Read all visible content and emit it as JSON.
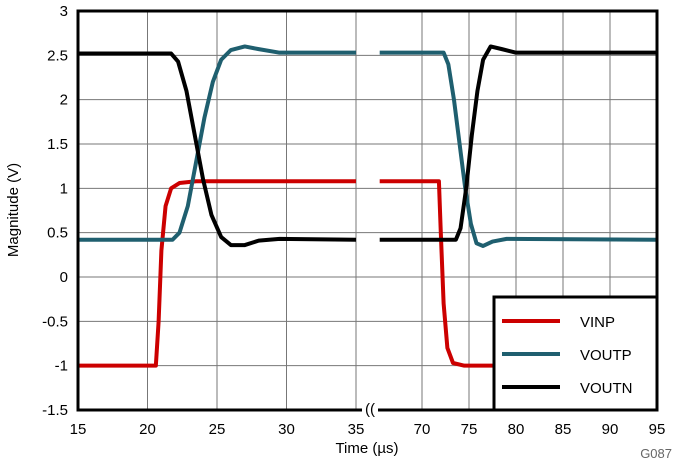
{
  "chart_data": {
    "type": "line",
    "title": "",
    "xlabel": "Time (µs)",
    "ylabel": "Magnitude (V)",
    "figure_id": "G087",
    "xlim_segments": [
      [
        15,
        35
      ],
      [
        65.5,
        95
      ]
    ],
    "ylim": [
      -1.5,
      3
    ],
    "grid": true,
    "legend_placement": "bottom-right",
    "x_ticks": [
      15,
      20,
      25,
      30,
      35,
      70,
      75,
      80,
      85,
      90,
      95
    ],
    "y_ticks": [
      3,
      2.5,
      2,
      1.5,
      1,
      0.5,
      0,
      -0.5,
      -1,
      -1.5
    ],
    "y_tick_labels": [
      "3",
      "2.5",
      "2",
      "1.5",
      "1",
      "0.5",
      "0",
      "-0.5",
      "-1",
      "-1.5"
    ],
    "series": [
      {
        "name": "VINP",
        "color": "#cc0000",
        "segments": [
          [
            [
              15,
              -1
            ],
            [
              20.6,
              -1
            ],
            [
              20.8,
              -0.5
            ],
            [
              21,
              0.3
            ],
            [
              21.3,
              0.8
            ],
            [
              21.7,
              1.0
            ],
            [
              22.3,
              1.06
            ],
            [
              23.5,
              1.08
            ],
            [
              35,
              1.08
            ]
          ],
          [
            [
              65.5,
              1.08
            ],
            [
              71.8,
              1.08
            ],
            [
              72,
              0.5
            ],
            [
              72.3,
              -0.3
            ],
            [
              72.7,
              -0.8
            ],
            [
              73.3,
              -0.97
            ],
            [
              74.5,
              -1
            ],
            [
              95,
              -1
            ]
          ]
        ]
      },
      {
        "name": "VOUTP",
        "color": "#1f5f6f",
        "segments": [
          [
            [
              15,
              0.42
            ],
            [
              21.8,
              0.42
            ],
            [
              22.3,
              0.5
            ],
            [
              22.9,
              0.8
            ],
            [
              23.5,
              1.3
            ],
            [
              24.1,
              1.8
            ],
            [
              24.7,
              2.2
            ],
            [
              25.3,
              2.45
            ],
            [
              26,
              2.56
            ],
            [
              27,
              2.6
            ],
            [
              28,
              2.57
            ],
            [
              29.5,
              2.53
            ],
            [
              35,
              2.53
            ]
          ],
          [
            [
              65.5,
              2.53
            ],
            [
              72.3,
              2.53
            ],
            [
              72.8,
              2.4
            ],
            [
              73.4,
              2.0
            ],
            [
              74,
              1.5
            ],
            [
              74.6,
              1.0
            ],
            [
              75.2,
              0.6
            ],
            [
              75.8,
              0.38
            ],
            [
              76.5,
              0.35
            ],
            [
              77.5,
              0.4
            ],
            [
              79,
              0.43
            ],
            [
              95,
              0.42
            ]
          ]
        ]
      },
      {
        "name": "VOUTN",
        "color": "#000000",
        "segments": [
          [
            [
              15,
              2.52
            ],
            [
              21.7,
              2.52
            ],
            [
              22.2,
              2.43
            ],
            [
              22.8,
              2.1
            ],
            [
              23.4,
              1.6
            ],
            [
              24,
              1.1
            ],
            [
              24.6,
              0.7
            ],
            [
              25.3,
              0.45
            ],
            [
              26,
              0.36
            ],
            [
              27,
              0.36
            ],
            [
              28,
              0.41
            ],
            [
              29.5,
              0.43
            ],
            [
              35,
              0.42
            ]
          ],
          [
            [
              65.5,
              0.42
            ],
            [
              73.6,
              0.42
            ],
            [
              74.1,
              0.55
            ],
            [
              74.7,
              1.0
            ],
            [
              75.3,
              1.6
            ],
            [
              75.9,
              2.1
            ],
            [
              76.5,
              2.45
            ],
            [
              77.3,
              2.6
            ],
            [
              78.5,
              2.57
            ],
            [
              80,
              2.53
            ],
            [
              95,
              2.53
            ]
          ]
        ]
      }
    ]
  }
}
